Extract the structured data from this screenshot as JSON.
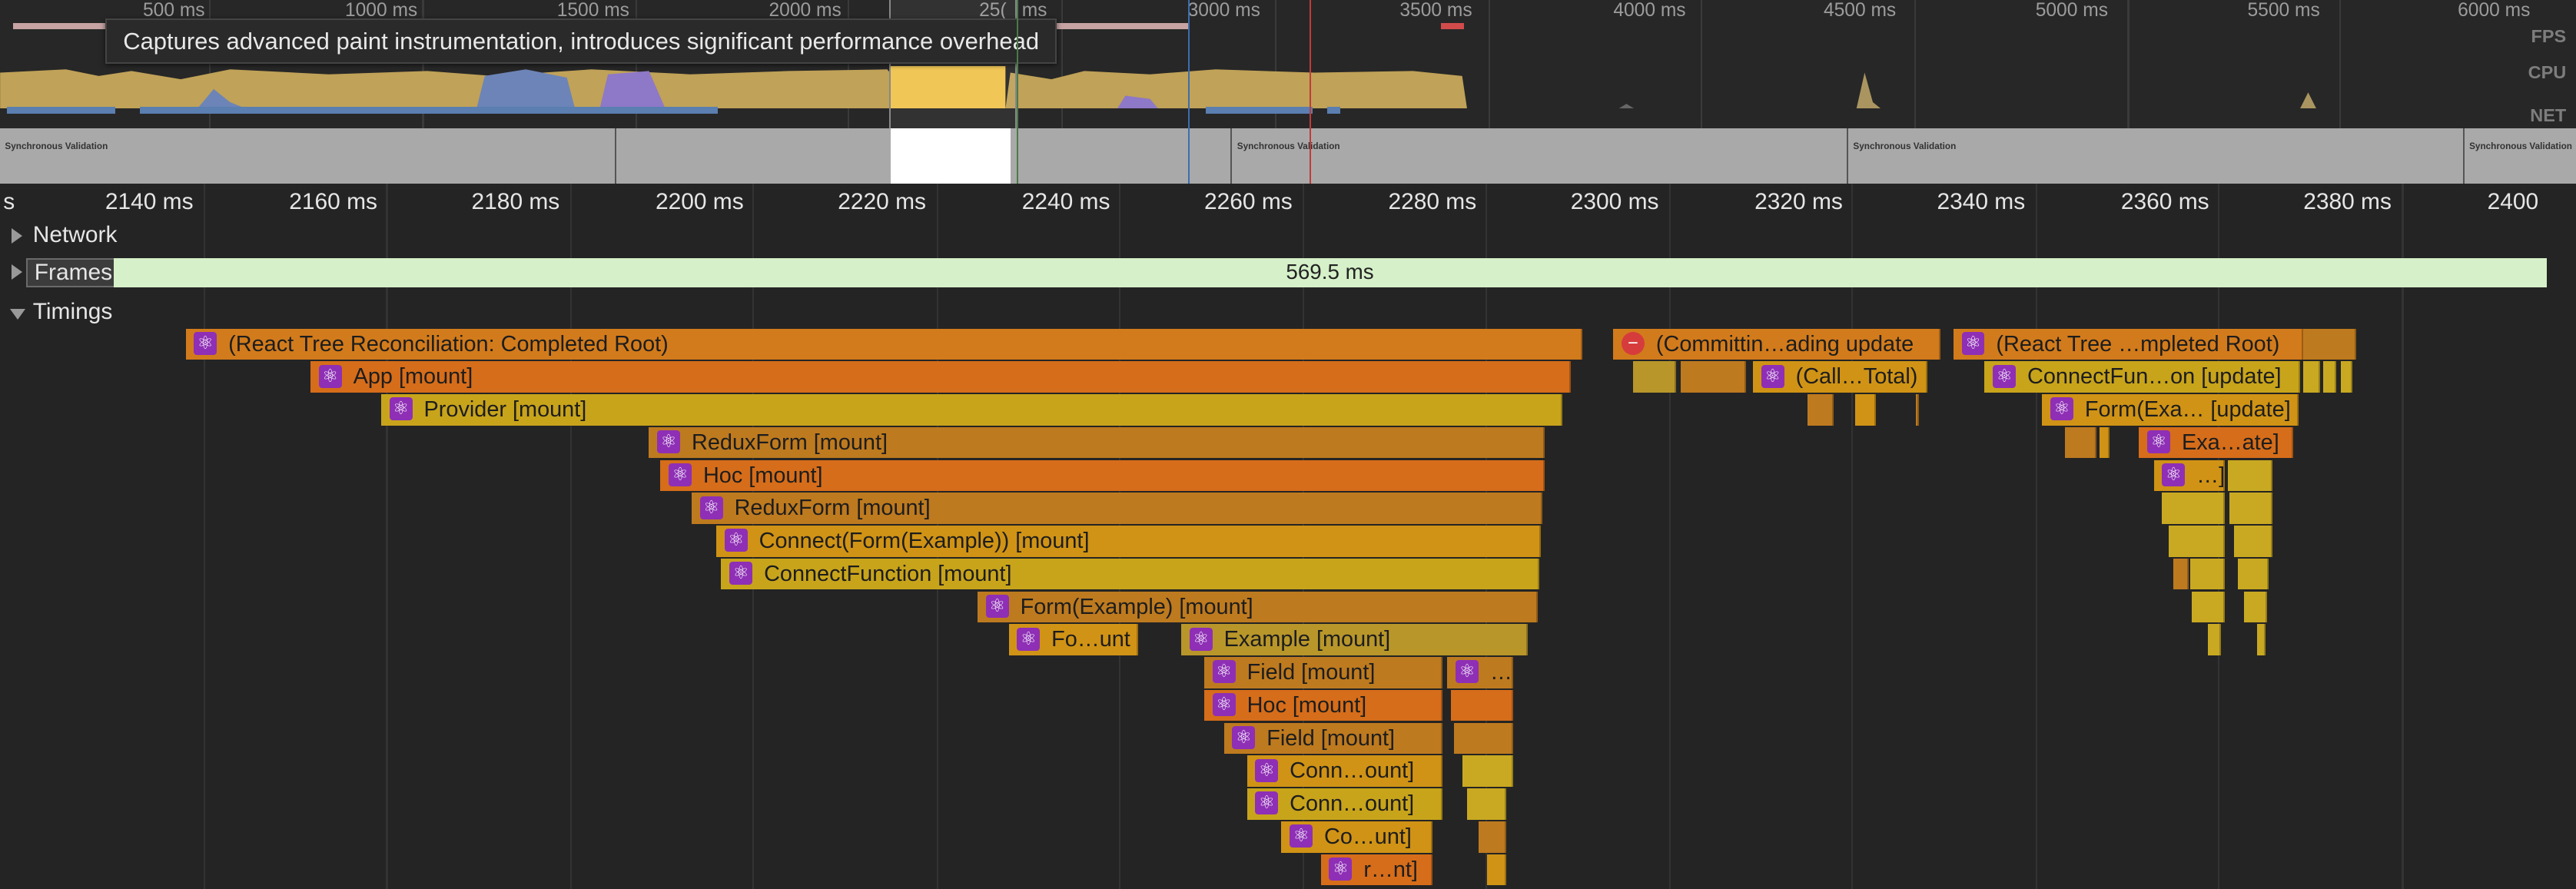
{
  "overview": {
    "ticks": [
      "500 ms",
      "1000 ms",
      "1500 ms",
      "2000 ms",
      "25(",
      "ms",
      "3000 ms",
      "3500 ms",
      "4000 ms",
      "4500 ms",
      "5000 ms",
      "5500 ms",
      "6000 ms"
    ],
    "lanes": {
      "fps": "FPS",
      "cpu": "CPU",
      "net": "NET"
    },
    "tooltip": "Captures advanced paint instrumentation, introduces significant performance overhead"
  },
  "screenshots": {
    "caption": "Synchronous Validation"
  },
  "ruler": {
    "labels": [
      "s",
      "2140 ms",
      "2160 ms",
      "2180 ms",
      "2200 ms",
      "2220 ms",
      "2240 ms",
      "2260 ms",
      "2280 ms",
      "2300 ms",
      "2320 ms",
      "2340 ms",
      "2360 ms",
      "2380 ms",
      "2400"
    ]
  },
  "sections": {
    "network": "Network",
    "frames": "Frames",
    "frames_duration": "569.5 ms",
    "timings": "Timings"
  },
  "colors": {
    "background": "#242424",
    "frames_bar": "#d6f0c9",
    "react_icon": "#8e2fb5",
    "cursor_red": "#c23b3b",
    "cursor_blue": "#3c6db0"
  },
  "timings": [
    {
      "label": "(React Tree Reconciliation: Completed Root)",
      "icon": "react-icon"
    },
    {
      "label": "App [mount]",
      "icon": "react-icon"
    },
    {
      "label": "Provider [mount]",
      "icon": "react-icon"
    },
    {
      "label": "ReduxForm [mount]",
      "icon": "react-icon"
    },
    {
      "label": "Hoc [mount]",
      "icon": "react-icon"
    },
    {
      "label": "ReduxForm [mount]",
      "icon": "react-icon"
    },
    {
      "label": "Connect(Form(Example)) [mount]",
      "icon": "react-icon"
    },
    {
      "label": "ConnectFunction [mount]",
      "icon": "react-icon"
    },
    {
      "label": "Form(Example) [mount]",
      "icon": "react-icon"
    },
    {
      "label": "Fo…unt",
      "icon": "react-icon"
    },
    {
      "label": "Example [mount]",
      "icon": "react-icon"
    },
    {
      "label": "Field [mount]",
      "icon": "react-icon"
    },
    {
      "label": "…",
      "icon": "react-icon"
    },
    {
      "label": "Hoc [mount]",
      "icon": "react-icon"
    },
    {
      "label": "Field [mount]",
      "icon": "react-icon"
    },
    {
      "label": "Conn…ount]",
      "icon": "react-icon"
    },
    {
      "label": "Conn…ount]",
      "icon": "react-icon"
    },
    {
      "label": "Co…unt]",
      "icon": "react-icon"
    },
    {
      "label": "r…nt]",
      "icon": "react-icon"
    },
    {
      "label": "(Committin…ading update",
      "icon": "stop-icon"
    },
    {
      "label": "(Call…Total)",
      "icon": "react-icon"
    },
    {
      "label": "(React Tree …mpleted Root)",
      "icon": "react-icon"
    },
    {
      "label": "ConnectFun…on [update]",
      "icon": "react-icon"
    },
    {
      "label": "Form(Exa… [update]",
      "icon": "react-icon"
    },
    {
      "label": "Exa…ate]",
      "icon": "react-icon"
    },
    {
      "label": "…]",
      "icon": "react-icon"
    }
  ]
}
